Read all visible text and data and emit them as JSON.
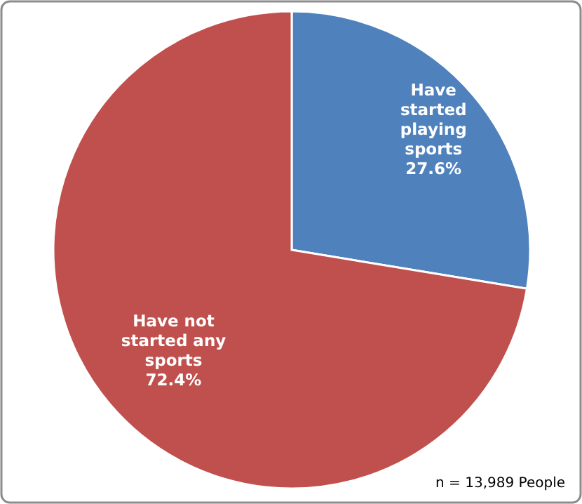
{
  "chart_data": {
    "type": "pie",
    "categories": [
      "Have started playing sports",
      "Have not started any sports"
    ],
    "values": [
      27.6,
      72.4
    ],
    "colors": [
      "#4f81bd",
      "#c0504d"
    ],
    "value_labels": [
      "27.6%",
      "72.4%"
    ],
    "annotations": [
      "n = 13,989 People"
    ]
  }
}
